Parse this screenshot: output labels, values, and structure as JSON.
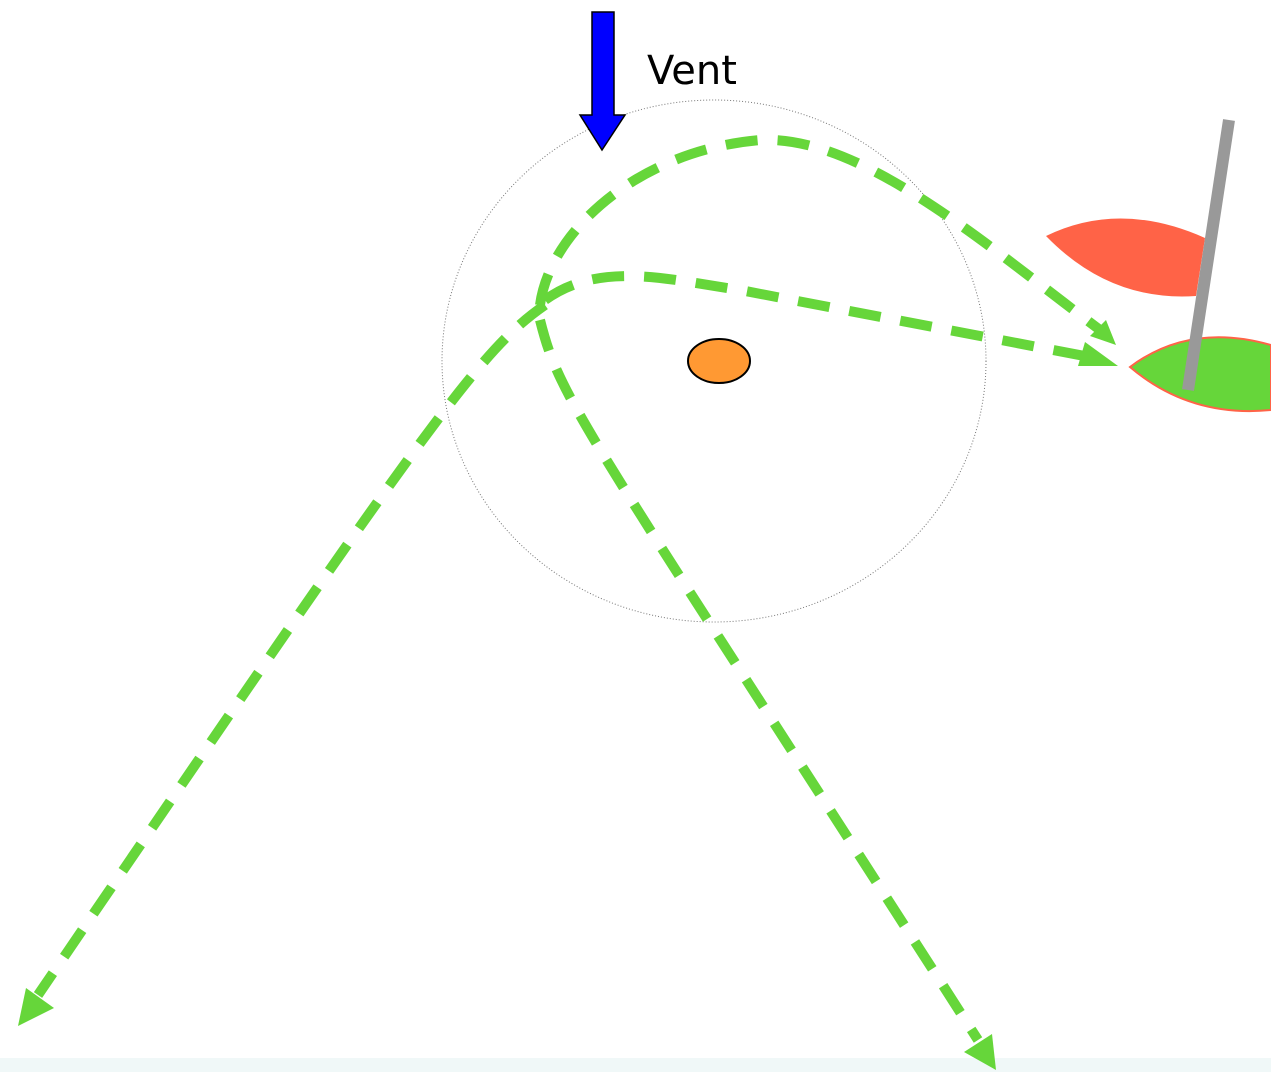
{
  "label": "Vent"
}
